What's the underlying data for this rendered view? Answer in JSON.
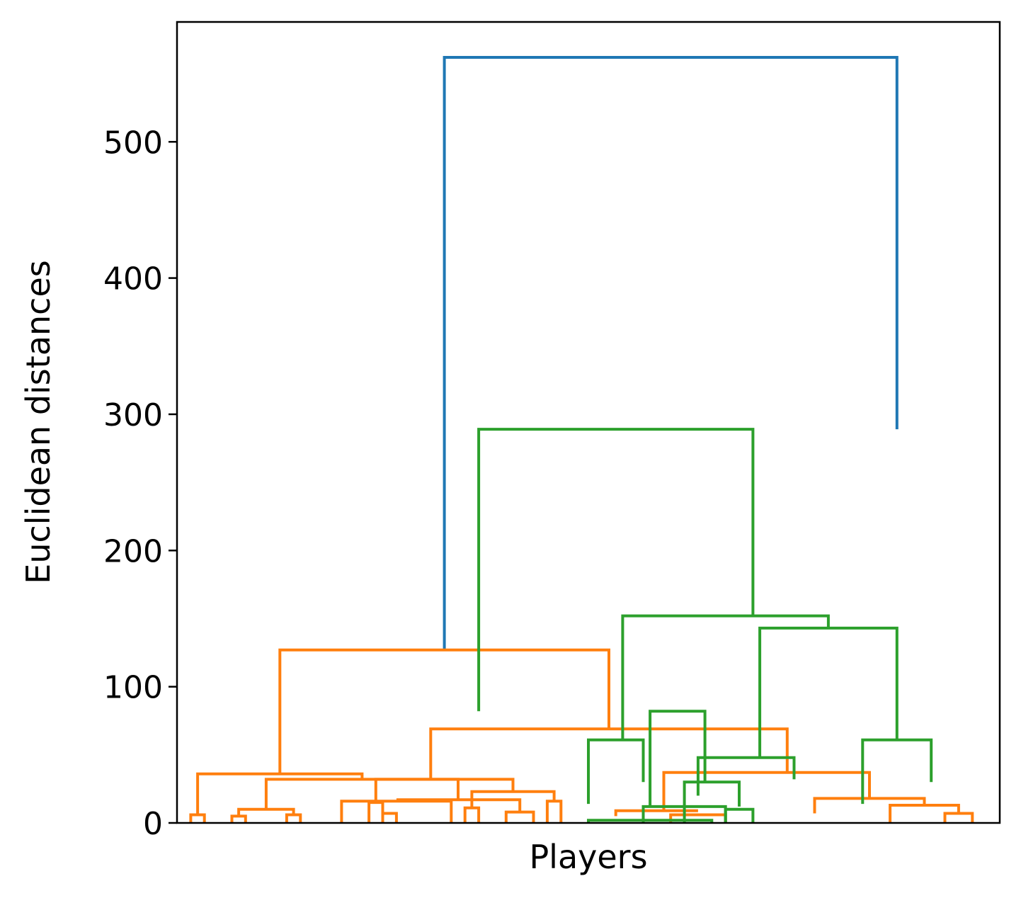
{
  "chart_data": {
    "type": "dendrogram",
    "title": "",
    "xlabel": "Players",
    "ylabel": "Euclidean distances",
    "ylim": [
      0,
      588
    ],
    "yticks": [
      0,
      100,
      200,
      300,
      400,
      500
    ],
    "xticks": [],
    "grid": false,
    "legend": "none",
    "colors": {
      "root": "#1f77b4",
      "cluster1": "#ff7f0e",
      "cluster2": "#2ca02c",
      "axis": "#000000"
    },
    "n_leaves": 80,
    "links": [
      {
        "x": [
          19.5,
          19.5,
          52.5,
          52.5
        ],
        "y": [
          127,
          562,
          562,
          289
        ],
        "color": "#1f77b4"
      },
      {
        "x": [
          7.5,
          7.5,
          31.5,
          31.5
        ],
        "y": [
          36,
          127,
          127,
          69
        ],
        "color": "#ff7f0e"
      },
      {
        "x": [
          1.5,
          1.5,
          13.5,
          13.5
        ],
        "y": [
          6,
          36,
          36,
          32
        ],
        "color": "#ff7f0e"
      },
      {
        "x": [
          1,
          1,
          2,
          2
        ],
        "y": [
          0,
          6,
          6,
          0
        ],
        "color": "#ff7f0e"
      },
      {
        "x": [
          6.5,
          6.5,
          20.5,
          20.5
        ],
        "y": [
          10,
          32,
          32,
          17
        ],
        "color": "#ff7f0e"
      },
      {
        "x": [
          4.5,
          4.5,
          8.5,
          8.5
        ],
        "y": [
          5,
          10,
          10,
          6
        ],
        "color": "#ff7f0e"
      },
      {
        "x": [
          4,
          4,
          5,
          5
        ],
        "y": [
          0,
          5,
          5,
          0
        ],
        "color": "#ff7f0e"
      },
      {
        "x": [
          8,
          8,
          9,
          9
        ],
        "y": [
          0,
          6,
          6,
          0
        ],
        "color": "#ff7f0e"
      },
      {
        "x": [
          16,
          16,
          25,
          25
        ],
        "y": [
          17,
          17,
          17,
          8
        ],
        "color": "#ff7f0e"
      },
      {
        "x": [
          12,
          12,
          20,
          20
        ],
        "y": [
          0,
          16,
          16,
          0
        ],
        "color": "#ff7f0e"
      },
      {
        "x": [
          24,
          24,
          26,
          26
        ],
        "y": [
          0,
          8,
          8,
          0
        ],
        "color": "#ff7f0e"
      },
      {
        "x": [
          18.5,
          18.5,
          44.5,
          44.5
        ],
        "y": [
          32,
          69,
          69,
          37
        ],
        "color": "#ff7f0e"
      },
      {
        "x": [
          14.5,
          14.5,
          24.5,
          24.5
        ],
        "y": [
          15,
          32,
          32,
          23
        ],
        "color": "#ff7f0e"
      },
      {
        "x": [
          14,
          14,
          15,
          15
        ],
        "y": [
          0,
          15,
          15,
          0
        ],
        "color": "#ff7f0e"
      },
      {
        "x": [
          15,
          15,
          16,
          16
        ],
        "y": [
          0,
          7,
          7,
          0
        ],
        "color": "#ff7f0e"
      },
      {
        "x": [
          21.5,
          21.5,
          27.5,
          27.5
        ],
        "y": [
          11,
          23,
          23,
          16
        ],
        "color": "#ff7f0e"
      },
      {
        "x": [
          21,
          21,
          22,
          22
        ],
        "y": [
          0,
          11,
          11,
          0
        ],
        "color": "#ff7f0e"
      },
      {
        "x": [
          27,
          27,
          28,
          28
        ],
        "y": [
          0,
          16,
          16,
          0
        ],
        "color": "#ff7f0e"
      },
      {
        "x": [
          35.5,
          35.5,
          50.5,
          50.5
        ],
        "y": [
          9,
          37,
          37,
          18
        ],
        "color": "#ff7f0e"
      },
      {
        "x": [
          32,
          32,
          38,
          38
        ],
        "y": [
          5,
          9,
          9,
          9
        ],
        "color": "#ff7f0e"
      },
      {
        "x": [
          36,
          36,
          40,
          40
        ],
        "y": [
          0,
          6,
          6,
          0
        ],
        "color": "#ff7f0e"
      },
      {
        "x": [
          46.5,
          46.5,
          54.5,
          54.5
        ],
        "y": [
          7,
          18,
          18,
          13
        ],
        "color": "#ff7f0e"
      },
      {
        "x": [
          52,
          52,
          57,
          57
        ],
        "y": [
          0,
          13,
          13,
          7
        ],
        "color": "#ff7f0e"
      },
      {
        "x": [
          56,
          56,
          58,
          58
        ],
        "y": [
          0,
          7,
          7,
          0
        ],
        "color": "#ff7f0e"
      },
      {
        "x": [
          22.0,
          22.0,
          42.0,
          42.0
        ],
        "y": [
          82,
          289,
          289,
          152
        ],
        "color": "#2ca02c"
      },
      {
        "x": [
          34.5,
          34.5,
          38.5,
          38.5
        ],
        "y": [
          12,
          82,
          82,
          30
        ],
        "color": "#2ca02c"
      },
      {
        "x": [
          30,
          30,
          39,
          39
        ],
        "y": [
          0,
          2,
          2,
          0
        ],
        "color": "#2ca02c"
      },
      {
        "x": [
          34,
          34,
          40,
          40
        ],
        "y": [
          0,
          12,
          12,
          0
        ],
        "color": "#2ca02c"
      },
      {
        "x": [
          37,
          37,
          41,
          41
        ],
        "y": [
          0,
          30,
          30,
          12
        ],
        "color": "#2ca02c"
      },
      {
        "x": [
          40,
          40,
          42,
          42
        ],
        "y": [
          0,
          10,
          10,
          0
        ],
        "color": "#2ca02c"
      },
      {
        "x": [
          32.5,
          32.5,
          47.5,
          47.5
        ],
        "y": [
          61,
          152,
          152,
          143
        ],
        "color": "#2ca02c"
      },
      {
        "x": [
          30,
          30,
          34,
          34
        ],
        "y": [
          14,
          61,
          61,
          30
        ],
        "color": "#2ca02c"
      },
      {
        "x": [
          42.5,
          42.5,
          52.5,
          52.5
        ],
        "y": [
          48,
          143,
          143,
          61
        ],
        "color": "#2ca02c"
      },
      {
        "x": [
          38,
          38,
          45,
          45
        ],
        "y": [
          20,
          48,
          48,
          32
        ],
        "color": "#2ca02c"
      },
      {
        "x": [
          50,
          50,
          55,
          55
        ],
        "y": [
          14,
          61,
          61,
          30
        ],
        "color": "#2ca02c"
      }
    ]
  }
}
